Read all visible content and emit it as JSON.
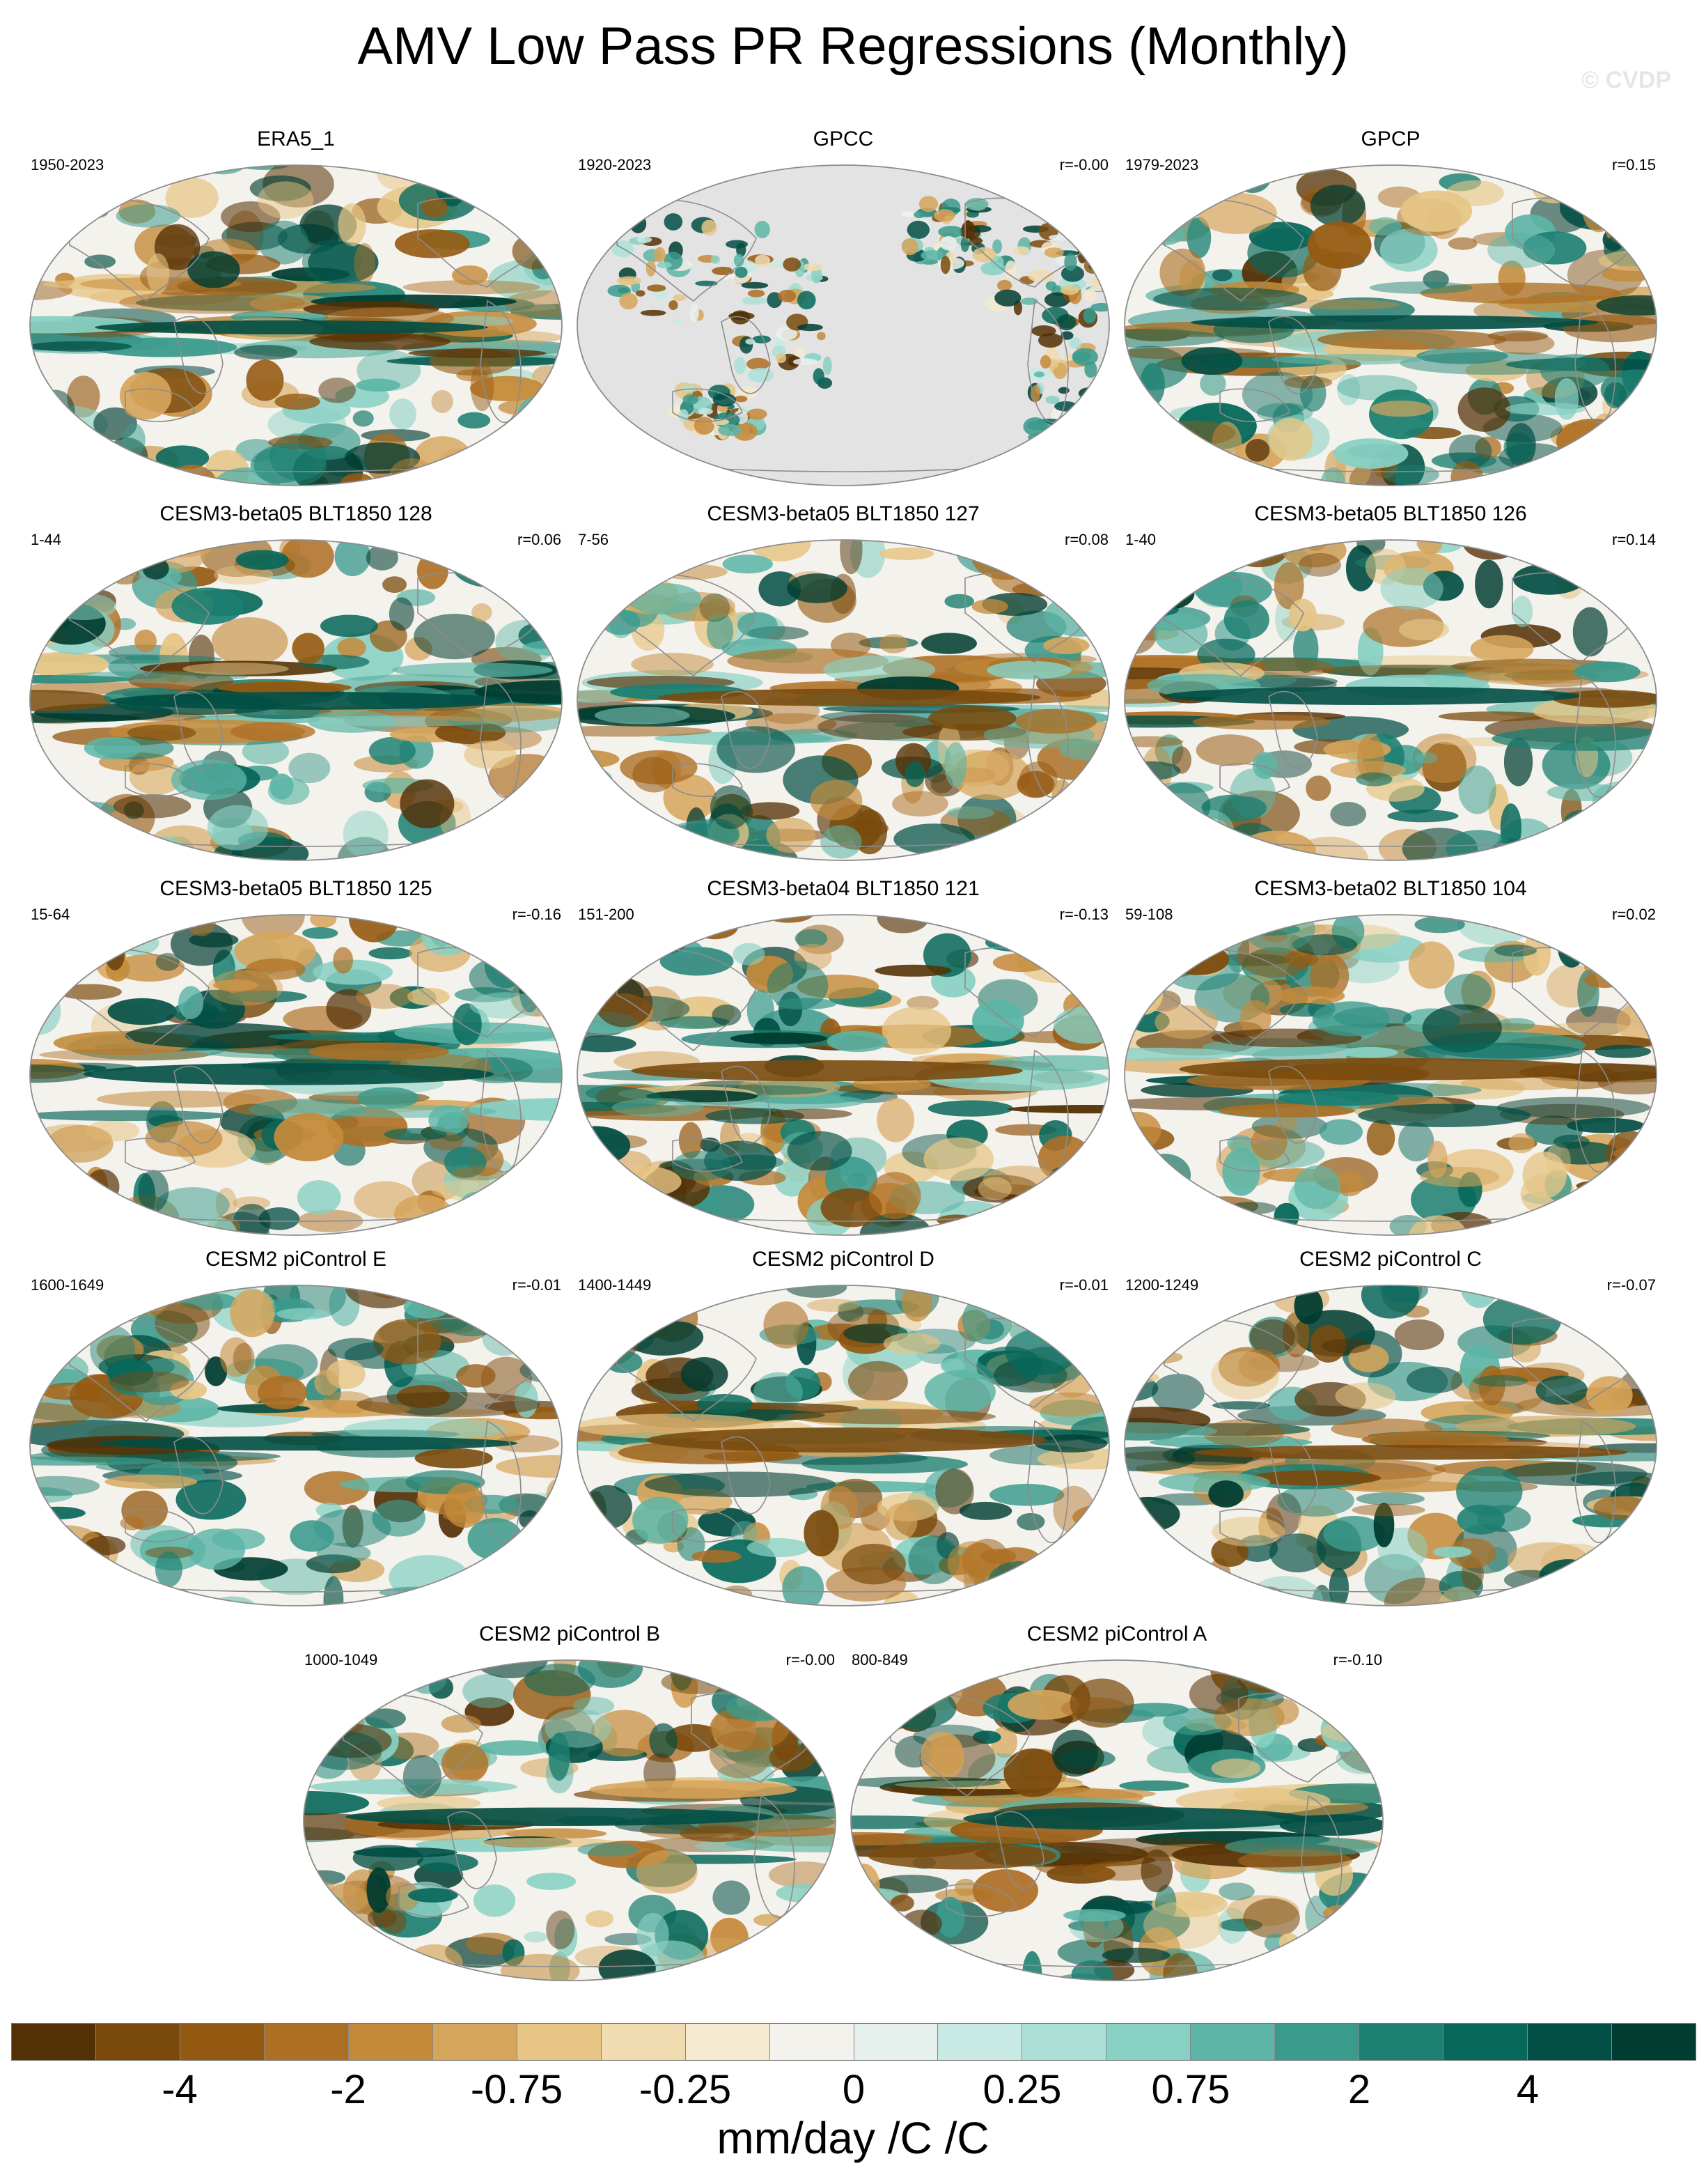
{
  "header": {
    "title": "AMV Low Pass PR Regressions (Monthly)",
    "watermark": "© CVDP"
  },
  "panels": [
    {
      "title": "ERA5_1",
      "period": "1950-2023",
      "corr": "",
      "land_only": false,
      "seed": 11
    },
    {
      "title": "GPCC",
      "period": "1920-2023",
      "corr": "r=-0.00",
      "land_only": true,
      "seed": 23
    },
    {
      "title": "GPCP",
      "period": "1979-2023",
      "corr": "r=0.15",
      "land_only": false,
      "seed": 37
    },
    {
      "title": "CESM3-beta05 BLT1850 128",
      "period": "1-44",
      "corr": "r=0.06",
      "land_only": false,
      "seed": 41
    },
    {
      "title": "CESM3-beta05 BLT1850 127",
      "period": "7-56",
      "corr": "r=0.08",
      "land_only": false,
      "seed": 53
    },
    {
      "title": "CESM3-beta05 BLT1850 126",
      "period": "1-40",
      "corr": "r=0.14",
      "land_only": false,
      "seed": 67
    },
    {
      "title": "CESM3-beta05 BLT1850 125",
      "period": "15-64",
      "corr": "r=-0.16",
      "land_only": false,
      "seed": 71
    },
    {
      "title": "CESM3-beta04 BLT1850 121",
      "period": "151-200",
      "corr": "r=-0.13",
      "land_only": false,
      "seed": 83
    },
    {
      "title": "CESM3-beta02 BLT1850 104",
      "period": "59-108",
      "corr": "r=0.02",
      "land_only": false,
      "seed": 97
    },
    {
      "title": "CESM2 piControl E",
      "period": "1600-1649",
      "corr": "r=-0.01",
      "land_only": false,
      "seed": 101
    },
    {
      "title": "CESM2 piControl D",
      "period": "1400-1449",
      "corr": "r=-0.01",
      "land_only": false,
      "seed": 113
    },
    {
      "title": "CESM2 piControl C",
      "period": "1200-1249",
      "corr": "r=-0.07",
      "land_only": false,
      "seed": 127
    },
    {
      "title": "CESM2 piControl B",
      "period": "1000-1049",
      "corr": "r=-0.00",
      "land_only": false,
      "seed": 131
    },
    {
      "title": "CESM2 piControl A",
      "period": "800-849",
      "corr": "r=-0.10",
      "land_only": false,
      "seed": 149
    }
  ],
  "colorbar": {
    "colors": [
      "#543005",
      "#7a4a0d",
      "#955a12",
      "#ad6f24",
      "#c48a3a",
      "#d6a55c",
      "#e6c585",
      "#f0dcb0",
      "#f5eacf",
      "#f4f2ec",
      "#e6f1ee",
      "#c9eae4",
      "#ace0d7",
      "#87d0c3",
      "#5cb5a6",
      "#3a9a8c",
      "#1c7f71",
      "#06675a",
      "#014e44",
      "#003c30"
    ],
    "labels": [
      "-4",
      "-2",
      "-0.75",
      "-0.25",
      "0",
      "0.25",
      "0.75",
      "2",
      "4"
    ],
    "units": "mm/day /C /C"
  },
  "map_style": {
    "ocean_missing": "#e3e3e3",
    "coast": "#8c8c8c",
    "outline": "#8c8c8c"
  }
}
